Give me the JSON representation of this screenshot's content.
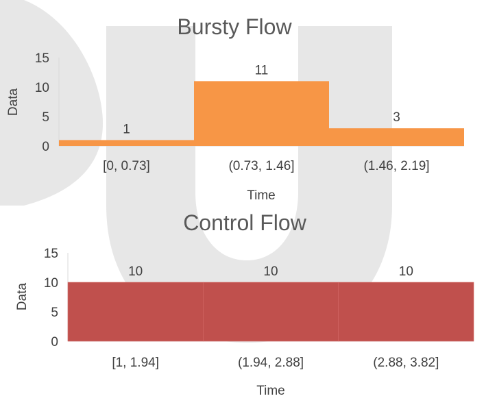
{
  "chart_data": [
    {
      "type": "bar",
      "title": "Bursty Flow",
      "xlabel": "Time",
      "ylabel": "Data",
      "categories": [
        "[0, 0.73]",
        "(0.73, 1.46]",
        "(1.46, 2.19]"
      ],
      "values": [
        1,
        11,
        3
      ],
      "data_labels": [
        "1",
        "11",
        "3"
      ],
      "yticks": [
        "0",
        "5",
        "10",
        "15"
      ],
      "ylim": [
        0,
        15
      ],
      "bar_color": "#F79646",
      "grid": false,
      "legend": "none"
    },
    {
      "type": "bar",
      "title": "Control Flow",
      "xlabel": "Time",
      "ylabel": "Data",
      "categories": [
        "[1, 1.94]",
        "(1.94, 2.88]",
        "(2.88, 3.82]"
      ],
      "values": [
        10,
        10,
        10
      ],
      "data_labels": [
        "10",
        "10",
        "10"
      ],
      "yticks": [
        "0",
        "5",
        "10",
        "15"
      ],
      "ylim": [
        0,
        15
      ],
      "bar_color": "#C0504D",
      "grid": false,
      "legend": "none"
    }
  ],
  "watermark": {
    "description": "large grey stylized letter shape behind charts",
    "color": "#E7E7E7"
  }
}
